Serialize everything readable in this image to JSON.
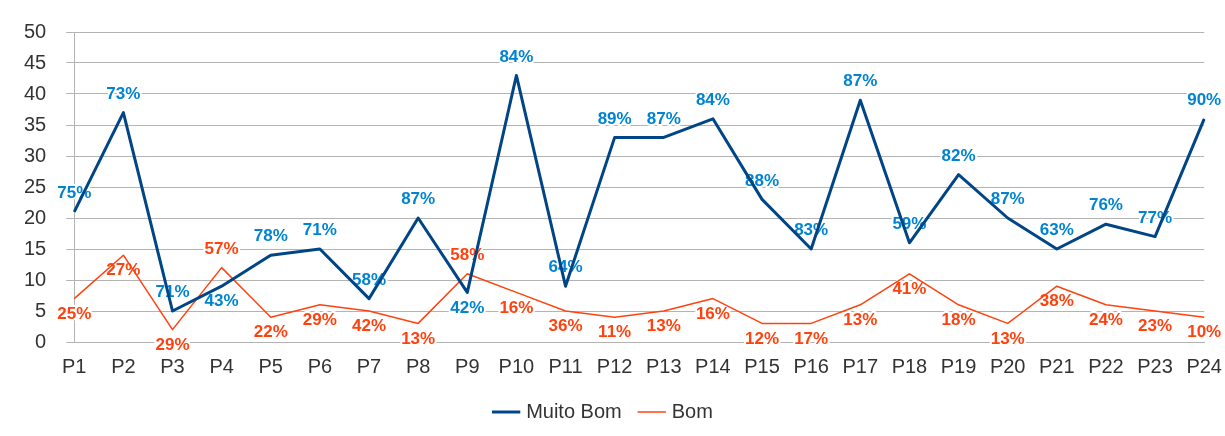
{
  "chart_data": {
    "type": "line",
    "categories": [
      "P1",
      "P2",
      "P3",
      "P4",
      "P5",
      "P6",
      "P7",
      "P8",
      "P9",
      "P10",
      "P11",
      "P12",
      "P13",
      "P14",
      "P15",
      "P16",
      "P17",
      "P18",
      "P19",
      "P20",
      "P21",
      "P22",
      "P23",
      "P24"
    ],
    "series": [
      {
        "name": "Muito Bom",
        "color": "#004586",
        "values": [
          21,
          37,
          5,
          9,
          14,
          15,
          7,
          20,
          8,
          43,
          9,
          33,
          33,
          36,
          23,
          15,
          39,
          16,
          27,
          20,
          15,
          19,
          17,
          36
        ]
      },
      {
        "name": "Bom",
        "color": "#ff420e",
        "values": [
          7,
          14,
          2,
          12,
          4,
          6,
          5,
          3,
          11,
          8,
          5,
          4,
          5,
          7,
          3,
          3,
          6,
          11,
          6,
          3,
          9,
          6,
          5,
          4
        ]
      }
    ],
    "annotations": [
      {
        "text": "75%",
        "x": "P1",
        "y": 21
      },
      {
        "text": "73%",
        "x": "P2",
        "y": 37
      },
      {
        "text": "71%",
        "x": "P3",
        "y": 5
      },
      {
        "text": "43%",
        "x": "P4",
        "y": 9
      },
      {
        "text": "78%",
        "x": "P5",
        "y": 14
      },
      {
        "text": "71%",
        "x": "P6",
        "y": 15
      },
      {
        "text": "58%",
        "x": "P7",
        "y": 7
      },
      {
        "text": "87%",
        "x": "P8",
        "y": 20
      },
      {
        "text": "42%",
        "x": "P9",
        "y": 8
      },
      {
        "text": "84%",
        "x": "P10",
        "y": 43
      },
      {
        "text": "64%",
        "x": "P11",
        "y": 9
      },
      {
        "text": "89%",
        "x": "P12",
        "y": 33
      },
      {
        "text": "87%",
        "x": "P13",
        "y": 33
      },
      {
        "text": "84%",
        "x": "P14",
        "y": 36
      },
      {
        "text": "88%",
        "x": "P15",
        "y": 23
      },
      {
        "text": "83%",
        "x": "P16",
        "y": 15
      },
      {
        "text": "87%",
        "x": "P17",
        "y": 39
      },
      {
        "text": "59%",
        "x": "P18",
        "y": 16
      },
      {
        "text": "82%",
        "x": "P19",
        "y": 27
      },
      {
        "text": "87%",
        "x": "P20",
        "y": 20
      },
      {
        "text": "63%",
        "x": "P21",
        "y": 15
      },
      {
        "text": "76%",
        "x": "P22",
        "y": 19
      },
      {
        "text": "77%",
        "x": "P23",
        "y": 17
      },
      {
        "text": "90%",
        "x": "P24",
        "y": 36
      },
      {
        "text": "25%",
        "x": "P1",
        "y": 7
      },
      {
        "text": "27%",
        "x": "P2",
        "y": 14
      },
      {
        "text": "29%",
        "x": "P3",
        "y": 2
      },
      {
        "text": "57%",
        "x": "P4",
        "y": 12
      },
      {
        "text": "22%",
        "x": "P5",
        "y": 4
      },
      {
        "text": "29%",
        "x": "P6",
        "y": 6
      },
      {
        "text": "42%",
        "x": "P7",
        "y": 5
      },
      {
        "text": "13%",
        "x": "P8",
        "y": 3
      },
      {
        "text": "58%",
        "x": "P9",
        "y": 11
      },
      {
        "text": "16%",
        "x": "P10",
        "y": 8
      },
      {
        "text": "36%",
        "x": "P11",
        "y": 5
      },
      {
        "text": "11%",
        "x": "P12",
        "y": 4
      },
      {
        "text": "13%",
        "x": "P13",
        "y": 5
      },
      {
        "text": "16%",
        "x": "P14",
        "y": 7
      },
      {
        "text": "12%",
        "x": "P15",
        "y": 3
      },
      {
        "text": "17%",
        "x": "P16",
        "y": 3
      },
      {
        "text": "13%",
        "x": "P17",
        "y": 6
      },
      {
        "text": "41%",
        "x": "P18",
        "y": 11
      },
      {
        "text": "18%",
        "x": "P19",
        "y": 6
      },
      {
        "text": "13%",
        "x": "P20",
        "y": 3
      },
      {
        "text": "38%",
        "x": "P21",
        "y": 9
      },
      {
        "text": "24%",
        "x": "P22",
        "y": 6
      },
      {
        "text": "23%",
        "x": "P23",
        "y": 5
      },
      {
        "text": "10%",
        "x": "P24",
        "y": 4
      }
    ],
    "ylim": [
      0,
      50
    ],
    "yticks": [
      0,
      5,
      10,
      15,
      20,
      25,
      30,
      35,
      40,
      45,
      50
    ],
    "grid": "y",
    "legend": "bottom",
    "marker": "none",
    "line_style": "solid"
  }
}
